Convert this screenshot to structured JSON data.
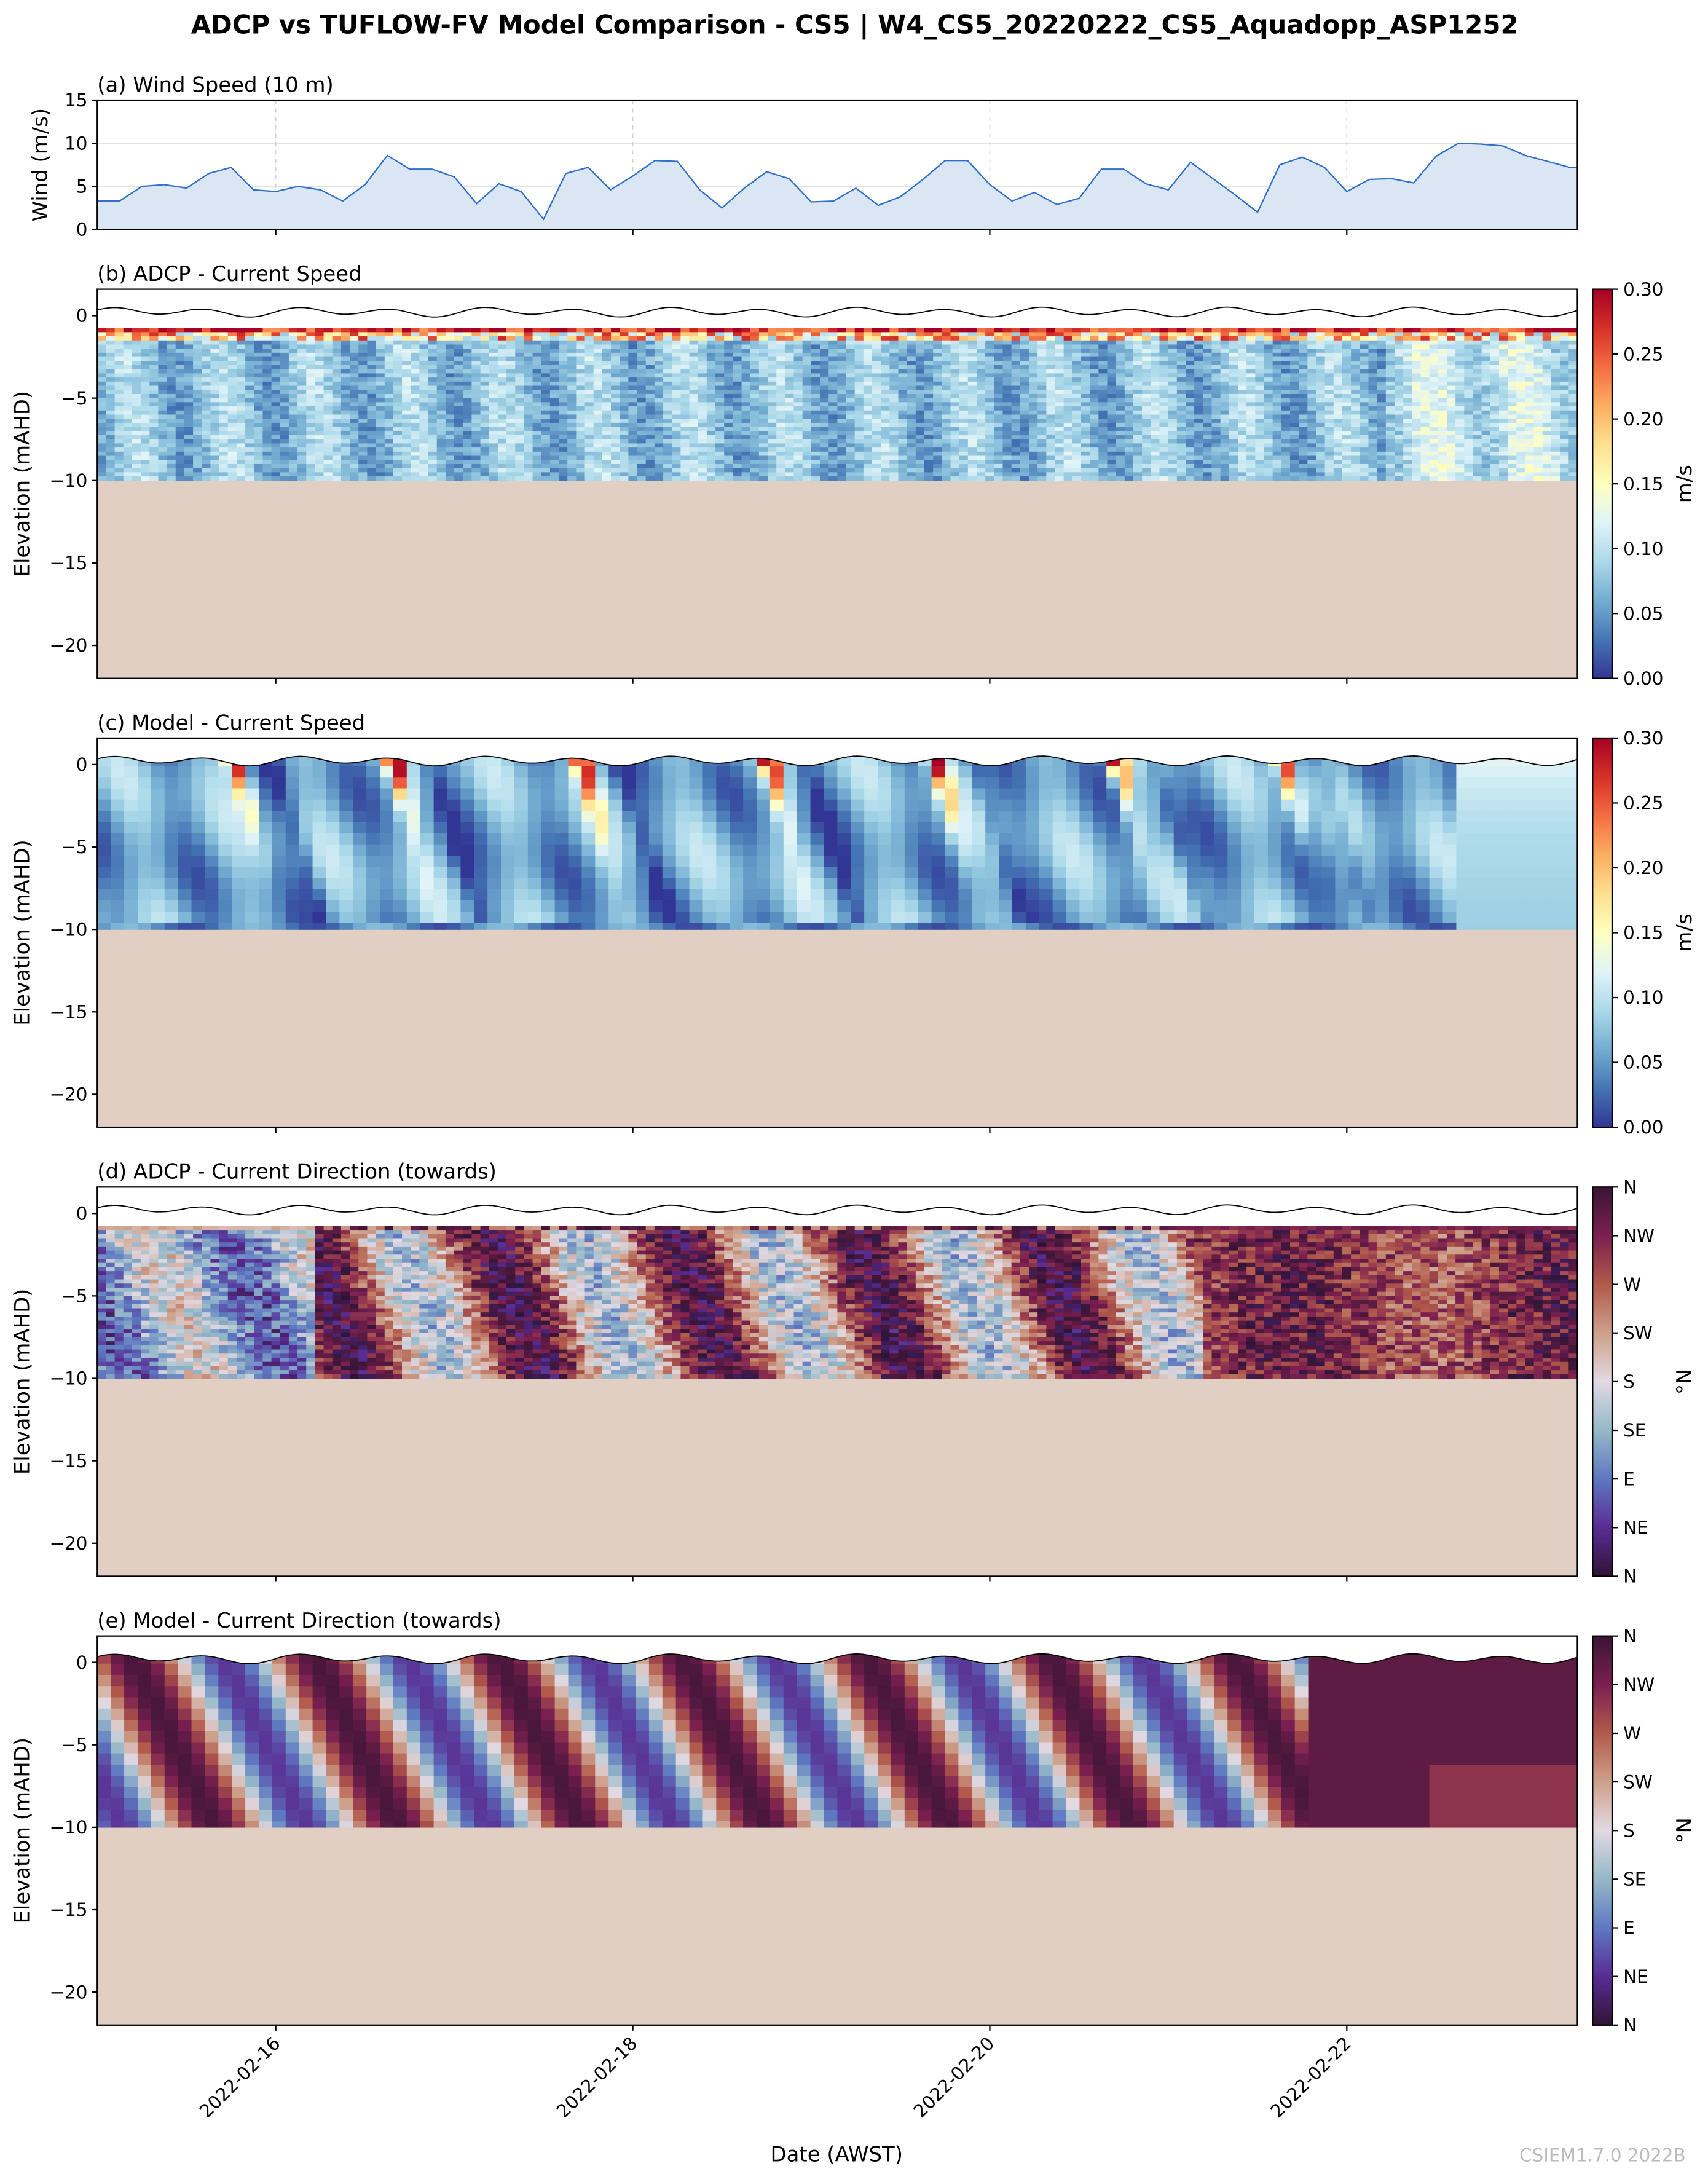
{
  "title": "ADCP vs TUFLOW-FV Model Comparison - CS5 | W4_CS5_20220222_CS5_Aquadopp_ASP1252",
  "watermark": "CSIEM1.7.0 2022B",
  "colors": {
    "wind_line": "#2f6fc9",
    "wind_fill": "#dbe6f4",
    "bed": "#e0cfc2",
    "surface_line": "#000000"
  },
  "chart_data": [
    {
      "type": "area",
      "title": "(a) Wind Speed (10 m)",
      "ylabel": "Wind (m/s)",
      "ylim": [
        0,
        15
      ],
      "yticks": [
        "0",
        "5",
        "10",
        "15"
      ],
      "xlim": [
        "2022-02-15T00:00",
        "2022-02-23T07:00"
      ],
      "grid": true,
      "x": [
        "2022-02-15T00:00",
        "2022-02-15T03:00",
        "2022-02-15T06:00",
        "2022-02-15T09:00",
        "2022-02-15T12:00",
        "2022-02-15T15:00",
        "2022-02-15T18:00",
        "2022-02-15T21:00",
        "2022-02-16T00:00",
        "2022-02-16T03:00",
        "2022-02-16T06:00",
        "2022-02-16T09:00",
        "2022-02-16T12:00",
        "2022-02-16T15:00",
        "2022-02-16T18:00",
        "2022-02-16T21:00",
        "2022-02-17T00:00",
        "2022-02-17T03:00",
        "2022-02-17T06:00",
        "2022-02-17T09:00",
        "2022-02-17T12:00",
        "2022-02-17T15:00",
        "2022-02-17T18:00",
        "2022-02-17T21:00",
        "2022-02-18T00:00",
        "2022-02-18T03:00",
        "2022-02-18T06:00",
        "2022-02-18T09:00",
        "2022-02-18T12:00",
        "2022-02-18T15:00",
        "2022-02-18T18:00",
        "2022-02-18T21:00",
        "2022-02-19T00:00",
        "2022-02-19T03:00",
        "2022-02-19T06:00",
        "2022-02-19T09:00",
        "2022-02-19T12:00",
        "2022-02-19T15:00",
        "2022-02-19T18:00",
        "2022-02-19T21:00",
        "2022-02-20T00:00",
        "2022-02-20T03:00",
        "2022-02-20T06:00",
        "2022-02-20T09:00",
        "2022-02-20T12:00",
        "2022-02-20T15:00",
        "2022-02-20T18:00",
        "2022-02-20T21:00",
        "2022-02-21T00:00",
        "2022-02-21T03:00",
        "2022-02-21T06:00",
        "2022-02-21T09:00",
        "2022-02-21T12:00",
        "2022-02-21T15:00",
        "2022-02-21T18:00",
        "2022-02-21T21:00",
        "2022-02-22T00:00",
        "2022-02-22T03:00",
        "2022-02-22T06:00",
        "2022-02-22T09:00",
        "2022-02-22T12:00",
        "2022-02-22T15:00",
        "2022-02-22T18:00",
        "2022-02-22T21:00",
        "2022-02-23T00:00",
        "2022-02-23T03:00",
        "2022-02-23T06:00"
      ],
      "values": [
        3.3,
        3.3,
        5.0,
        5.2,
        4.8,
        6.5,
        7.2,
        4.6,
        4.4,
        5.0,
        4.6,
        3.3,
        5.2,
        8.6,
        7.0,
        7.0,
        6.1,
        3.0,
        5.3,
        4.4,
        1.2,
        6.5,
        7.2,
        4.6,
        6.2,
        8.0,
        7.9,
        4.6,
        2.5,
        4.8,
        6.7,
        5.9,
        3.2,
        3.3,
        4.8,
        2.8,
        3.8,
        5.8,
        8.0,
        8.0,
        5.2,
        3.3,
        4.3,
        2.9,
        3.6,
        7.0,
        7.0,
        5.3,
        4.6,
        7.8,
        5.9,
        4.0,
        2.0,
        7.5,
        8.4,
        7.2,
        4.4,
        5.8,
        5.9,
        5.4,
        8.5,
        10.0,
        9.9,
        9.7,
        8.6,
        7.9,
        7.2
      ]
    },
    {
      "type": "heatmap",
      "title": "(b) ADCP - Current Speed",
      "ylabel": "Elevation (mAHD)",
      "ylim": [
        -22,
        1.6
      ],
      "yticks": [
        "0",
        "−5",
        "−10",
        "−15",
        "−20"
      ],
      "colorbar": {
        "colormap": "RdYlBu_r",
        "range": [
          0,
          0.3
        ],
        "ticks": [
          "0.00",
          "0.05",
          "0.10",
          "0.15",
          "0.20",
          "0.25",
          "0.30"
        ],
        "label": "m/s"
      }
    },
    {
      "type": "heatmap",
      "title": "(c) Model - Current Speed",
      "ylabel": "Elevation (mAHD)",
      "ylim": [
        -22,
        1.6
      ],
      "yticks": [
        "0",
        "−5",
        "−10",
        "−15",
        "−20"
      ],
      "colorbar": {
        "colormap": "RdYlBu_r",
        "range": [
          0,
          0.3
        ],
        "ticks": [
          "0.00",
          "0.05",
          "0.10",
          "0.15",
          "0.20",
          "0.25",
          "0.30"
        ],
        "label": "m/s"
      }
    },
    {
      "type": "heatmap",
      "title": "(d) ADCP - Current Direction (towards)",
      "ylabel": "Elevation (mAHD)",
      "ylim": [
        -22,
        1.6
      ],
      "yticks": [
        "0",
        "−5",
        "−10",
        "−15",
        "−20"
      ],
      "colorbar": {
        "colormap": "twilight_shifted",
        "range": [
          0,
          360
        ],
        "ticks": [
          "N",
          "NE",
          "E",
          "SE",
          "S",
          "SW",
          "W",
          "NW",
          "N"
        ],
        "label": "°N"
      }
    },
    {
      "type": "heatmap",
      "title": "(e) Model - Current Direction (towards)",
      "ylabel": "Elevation (mAHD)",
      "ylim": [
        -22,
        1.6
      ],
      "yticks": [
        "0",
        "−5",
        "−10",
        "−15",
        "−20"
      ],
      "colorbar": {
        "colormap": "twilight_shifted",
        "range": [
          0,
          360
        ],
        "ticks": [
          "N",
          "NE",
          "E",
          "SE",
          "S",
          "SW",
          "W",
          "NW",
          "N"
        ],
        "label": "°N"
      }
    }
  ],
  "xaxis": {
    "label": "Date (AWST)",
    "ticks": [
      "2022-02-16",
      "2022-02-18",
      "2022-02-20",
      "2022-02-22"
    ]
  }
}
